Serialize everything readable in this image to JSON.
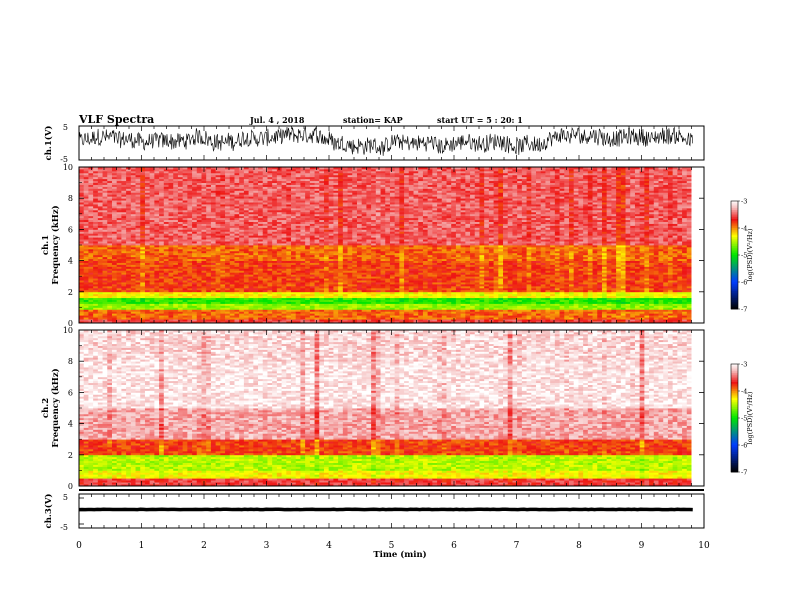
{
  "header": {
    "title": "VLF Spectra",
    "date": "Jul. 4 , 2018",
    "station": "station= KAP",
    "start_time": "start UT =  5 : 20: 1"
  },
  "colors": {
    "colormap": [
      "#ffffff",
      "#f5c4c4",
      "#ee1111",
      "#ffff00",
      "#00ee00",
      "#0033ff",
      "#000000"
    ]
  },
  "chart_data": [
    {
      "type": "line",
      "name": "ch1-waveform",
      "ylabel": "ch.1(V)",
      "ylim": [
        -5,
        5
      ],
      "yticks": [
        "5",
        "-5"
      ],
      "xlim": [
        0,
        10
      ],
      "approx_level": 0.5,
      "approx_amplitude": 2.5
    },
    {
      "type": "heatmap",
      "name": "ch1-spectrogram",
      "ylabel_top": "ch.1",
      "ylabel": "Frequency (kHz)",
      "ylim": [
        0,
        10
      ],
      "yticks": [
        "0",
        "2",
        "4",
        "6",
        "8",
        "10"
      ],
      "xlim": [
        0,
        9.8
      ],
      "bands": [
        {
          "f0": 0,
          "f1": 0.3,
          "level": -3.6
        },
        {
          "f0": 0.3,
          "f1": 0.9,
          "level": -3.9
        },
        {
          "f0": 0.9,
          "f1": 1.2,
          "level": -4.6
        },
        {
          "f0": 1.2,
          "f1": 1.6,
          "level": -4.9
        },
        {
          "f0": 1.6,
          "f1": 2.0,
          "level": -4.3
        },
        {
          "f0": 2.0,
          "f1": 4.0,
          "level": -3.8
        },
        {
          "f0": 4.0,
          "f1": 5.0,
          "level": -3.9
        },
        {
          "f0": 5.0,
          "f1": 10.0,
          "level": -3.5
        }
      ],
      "colorbar": {
        "label": "log(PSD)(V²/Hz)",
        "range": [
          -7,
          -3
        ],
        "ticks": [
          "-3",
          "-4",
          "-5",
          "-6",
          "-7"
        ]
      }
    },
    {
      "type": "heatmap",
      "name": "ch2-spectrogram",
      "ylabel_top": "ch.2",
      "ylabel": "Frequency (kHz)",
      "ylim": [
        0,
        10
      ],
      "yticks": [
        "0",
        "2",
        "4",
        "6",
        "8",
        "10"
      ],
      "xlim": [
        0,
        9.8
      ],
      "bands": [
        {
          "f0": 0,
          "f1": 0.5,
          "level": -3.6
        },
        {
          "f0": 0.5,
          "f1": 1.0,
          "level": -4.3
        },
        {
          "f0": 1.0,
          "f1": 2.0,
          "level": -4.5
        },
        {
          "f0": 2.0,
          "f1": 3.0,
          "level": -3.8
        },
        {
          "f0": 3.0,
          "f1": 5.0,
          "level": -3.3
        },
        {
          "f0": 5.0,
          "f1": 8.0,
          "level": -3.1
        },
        {
          "f0": 8.0,
          "f1": 10.0,
          "level": -3.15
        }
      ],
      "colorbar": {
        "label": "log(PSD)(V²/Hz)",
        "range": [
          -7,
          -3
        ],
        "ticks": [
          "-3",
          "-4",
          "-5",
          "-6",
          "-7"
        ]
      }
    },
    {
      "type": "line",
      "name": "ch3-waveform",
      "ylabel": "ch.3(V)",
      "ylim": [
        -5,
        5
      ],
      "yticks": [
        "5",
        "-5"
      ],
      "xlim": [
        0,
        10
      ],
      "approx_level": 0,
      "approx_amplitude": 0.15
    }
  ],
  "xaxis": {
    "label": "Time (min)",
    "range": [
      0,
      10
    ],
    "ticks": [
      "0",
      "1",
      "2",
      "3",
      "4",
      "5",
      "6",
      "7",
      "8",
      "9",
      "10"
    ]
  }
}
